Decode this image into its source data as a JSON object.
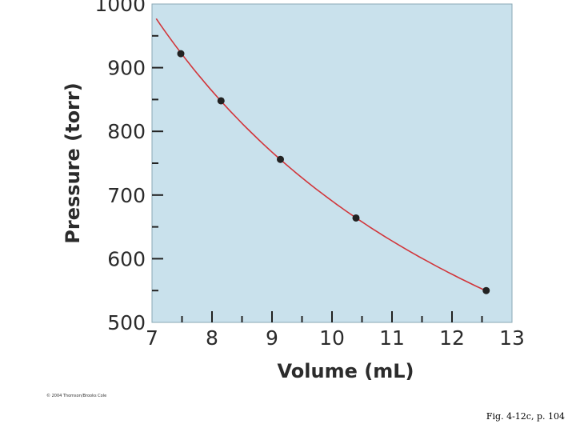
{
  "chart_data": {
    "type": "scatter",
    "title": "",
    "xlabel": "Volume (mL)",
    "ylabel": "Pressure (torr)",
    "xlim": [
      7,
      13
    ],
    "ylim": [
      500,
      1000
    ],
    "x_ticks": [
      "7",
      "8",
      "9",
      "10",
      "11",
      "12",
      "13"
    ],
    "y_ticks": [
      "500",
      "600",
      "700",
      "800",
      "900",
      "1000"
    ],
    "grid": false,
    "colors": {
      "plot_bg": "#c9e1ec",
      "curve": "#d1353a",
      "points": "#222222"
    },
    "series": [
      {
        "x": [
          7.48,
          8.15,
          9.14,
          10.4,
          12.57
        ],
        "y": [
          922,
          848,
          756,
          664,
          550
        ]
      }
    ],
    "fit_curve": {
      "type": "inverse",
      "note": "PV = constant",
      "x_range": [
        7.07,
        12.55
      ]
    }
  },
  "copyright_text": "© 2004 Thomson/Brooks Cole",
  "figure_caption": "Fig. 4-12c, p. 104"
}
